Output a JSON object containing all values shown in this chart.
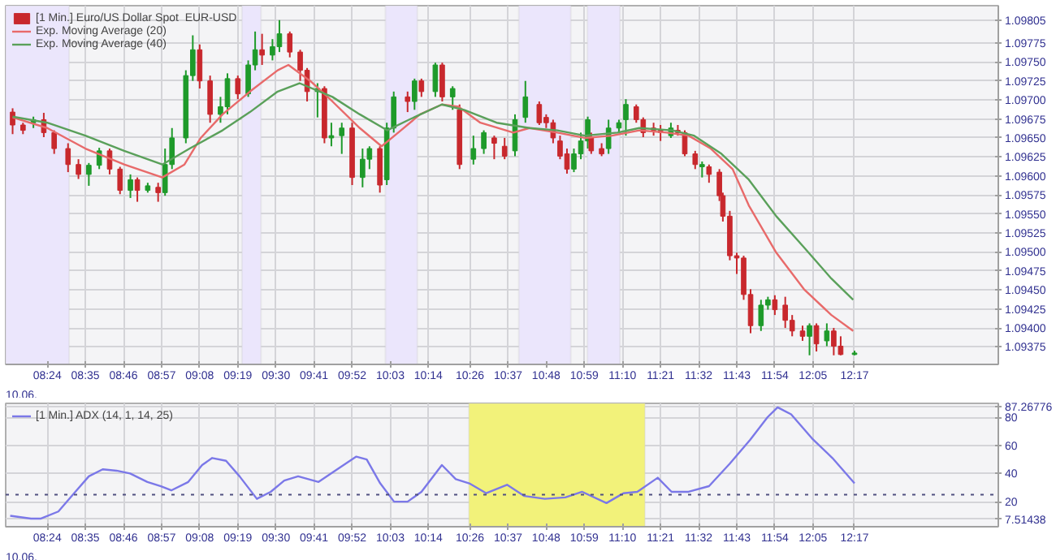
{
  "chart_data": [
    {
      "type": "candlestick",
      "xlim": [
        8.2,
        12.975
      ],
      "ylim": [
        1.09352,
        1.09824
      ],
      "annotations": [
        "10.06."
      ],
      "xticks": [
        {
          "value": 8.4,
          "label": "08:24"
        },
        {
          "value": 8.5833,
          "label": "08:35"
        },
        {
          "value": 8.7667,
          "label": "08:46"
        },
        {
          "value": 8.95,
          "label": "08:57"
        },
        {
          "value": 9.1333,
          "label": "09:08"
        },
        {
          "value": 9.3167,
          "label": "09:19"
        },
        {
          "value": 9.5,
          "label": "09:30"
        },
        {
          "value": 9.6833,
          "label": "09:41"
        },
        {
          "value": 9.8667,
          "label": "09:52"
        },
        {
          "value": 10.05,
          "label": "10:03"
        },
        {
          "value": 10.2333,
          "label": "10:14"
        },
        {
          "value": 10.4333,
          "label": "10:26"
        },
        {
          "value": 10.6167,
          "label": "10:37"
        },
        {
          "value": 10.8,
          "label": "10:48"
        },
        {
          "value": 10.9833,
          "label": "10:59"
        },
        {
          "value": 11.1667,
          "label": "11:10"
        },
        {
          "value": 11.35,
          "label": "11:21"
        },
        {
          "value": 11.5333,
          "label": "11:32"
        },
        {
          "value": 11.7167,
          "label": "11:43"
        },
        {
          "value": 11.9,
          "label": "11:54"
        },
        {
          "value": 12.0833,
          "label": "12:05"
        },
        {
          "value": 12.2833,
          "label": "12:17"
        }
      ],
      "yticks": [
        1.09375,
        {
          "value": 1.094,
          "label": "1.09400"
        },
        1.09425,
        {
          "value": 1.0945,
          "label": "1.09450"
        },
        1.09475,
        {
          "value": 1.095,
          "label": "1.09500"
        },
        1.09525,
        {
          "value": 1.0955,
          "label": "1.09550"
        },
        1.09575,
        {
          "value": 1.096,
          "label": "1.09600"
        },
        1.09625,
        {
          "value": 1.0965,
          "label": "1.09650"
        },
        1.09675,
        {
          "value": 1.097,
          "label": "1.09700"
        },
        1.09725,
        {
          "value": 1.0975,
          "label": "1.09750"
        },
        1.09775,
        1.09805
      ],
      "grid": true,
      "legend": "top left",
      "bands": [
        {
          "axis": "x",
          "from": 8.2,
          "to": 8.505,
          "color": "#ebe6fc"
        },
        {
          "axis": "x",
          "from": 9.3367,
          "to": 9.4283,
          "color": "#ebe6fc"
        },
        {
          "axis": "x",
          "from": 10.0267,
          "to": 10.18,
          "color": "#ebe6fc"
        },
        {
          "axis": "x",
          "from": 10.6683,
          "to": 10.9183,
          "color": "#ebe6fc"
        },
        {
          "axis": "x",
          "from": 10.9983,
          "to": 11.155,
          "color": "#ebe6fc"
        }
      ],
      "series": [
        {
          "type": "candlestick",
          "name": "[1 Min.] Euro/US Dollar Spot  EUR-USD",
          "x": [
            8.2333,
            8.2833,
            8.3333,
            8.3833,
            8.4333,
            8.5,
            8.55,
            8.6,
            8.65,
            8.7,
            8.75,
            8.8,
            8.8333,
            8.8833,
            8.9333,
            8.9667,
            9.0,
            9.0667,
            9.1,
            9.1333,
            9.1833,
            9.2333,
            9.2667,
            9.3167,
            9.3667,
            9.4,
            9.4333,
            9.4833,
            9.5167,
            9.5667,
            9.6167,
            9.65,
            9.7,
            9.7333,
            9.7667,
            9.8167,
            9.8667,
            9.9167,
            9.95,
            10.0,
            10.0333,
            10.0667,
            10.1333,
            10.1667,
            10.2,
            10.2667,
            10.3,
            10.35,
            10.3833,
            10.45,
            10.5,
            10.55,
            10.6,
            10.65,
            10.7,
            10.7667,
            10.8,
            10.8333,
            10.8667,
            10.9,
            10.9333,
            10.9667,
            11.0,
            11.0167,
            11.0667,
            11.1,
            11.15,
            11.1833,
            11.2333,
            11.2667,
            11.3167,
            11.35,
            11.4,
            11.4333,
            11.4667,
            11.5167,
            11.55,
            11.5833,
            11.6333,
            11.65,
            11.6833,
            11.7167,
            11.75,
            11.7833,
            11.8333,
            11.8667,
            11.9,
            11.95,
            11.9833,
            12.0333,
            12.0667,
            12.1,
            12.15,
            12.1833,
            12.2167,
            12.2833
          ],
          "ohlc": [
            [
              1.09684,
              1.09689,
              1.09655,
              1.09667
            ],
            [
              1.09667,
              1.0967,
              1.09655,
              1.0966
            ],
            [
              1.0967,
              1.09678,
              1.09663,
              1.09674
            ],
            [
              1.09674,
              1.09683,
              1.09651,
              1.09657
            ],
            [
              1.09657,
              1.0966,
              1.09629,
              1.09636
            ],
            [
              1.09636,
              1.09643,
              1.09605,
              1.09615
            ],
            [
              1.09615,
              1.09622,
              1.09596,
              1.09602
            ],
            [
              1.09602,
              1.09617,
              1.09587,
              1.09614
            ],
            [
              1.09614,
              1.09637,
              1.09609,
              1.09633
            ],
            [
              1.09633,
              1.09636,
              1.09602,
              1.09609
            ],
            [
              1.09609,
              1.09612,
              1.09576,
              1.09581
            ],
            [
              1.09581,
              1.09602,
              1.09571,
              1.09595
            ],
            [
              1.09595,
              1.09598,
              1.09566,
              1.09581
            ],
            [
              1.09581,
              1.09591,
              1.09578,
              1.09587
            ],
            [
              1.09585,
              1.09591,
              1.09566,
              1.09578
            ],
            [
              1.09578,
              1.09636,
              1.09574,
              1.09615
            ],
            [
              1.09615,
              1.09663,
              1.09609,
              1.0965
            ],
            [
              1.0965,
              1.09739,
              1.09643,
              1.09732
            ],
            [
              1.09732,
              1.09785,
              1.09725,
              1.09766
            ],
            [
              1.09766,
              1.09773,
              1.09715,
              1.09725
            ],
            [
              1.09725,
              1.09732,
              1.0967,
              1.09681
            ],
            [
              1.09681,
              1.09704,
              1.0967,
              1.09691
            ],
            [
              1.09691,
              1.09735,
              1.09681,
              1.09728
            ],
            [
              1.09728,
              1.09732,
              1.09701,
              1.09708
            ],
            [
              1.09708,
              1.09752,
              1.09704,
              1.09746
            ],
            [
              1.09746,
              1.0979,
              1.09739,
              1.09766
            ],
            [
              1.09766,
              1.09787,
              1.09746,
              1.09759
            ],
            [
              1.09759,
              1.0978,
              1.09752,
              1.0977
            ],
            [
              1.0977,
              1.09805,
              1.09763,
              1.09787
            ],
            [
              1.09787,
              1.0979,
              1.09756,
              1.09763
            ],
            [
              1.09763,
              1.09766,
              1.09725,
              1.09739
            ],
            [
              1.09739,
              1.09742,
              1.09698,
              1.09711
            ],
            [
              1.09711,
              1.09722,
              1.09677,
              1.09715
            ],
            [
              1.09715,
              1.09718,
              1.09643,
              1.0965
            ],
            [
              1.0965,
              1.0967,
              1.09639,
              1.09653
            ],
            [
              1.09653,
              1.0967,
              1.09629,
              1.09663
            ],
            [
              1.09663,
              1.0967,
              1.09588,
              1.09598
            ],
            [
              1.09598,
              1.09636,
              1.09585,
              1.09622
            ],
            [
              1.09622,
              1.09639,
              1.09609,
              1.09636
            ],
            [
              1.09636,
              1.09639,
              1.09578,
              1.09588
            ],
            [
              1.09595,
              1.0967,
              1.09588,
              1.09663
            ],
            [
              1.09663,
              1.09711,
              1.09657,
              1.09704
            ],
            [
              1.09704,
              1.09711,
              1.09684,
              1.09698
            ],
            [
              1.09698,
              1.09728,
              1.09687,
              1.09725
            ],
            [
              1.09725,
              1.09728,
              1.09704,
              1.09711
            ],
            [
              1.09711,
              1.09749,
              1.09704,
              1.09746
            ],
            [
              1.09746,
              1.09749,
              1.09698,
              1.09704
            ],
            [
              1.09704,
              1.09718,
              1.09687,
              1.09715
            ],
            [
              1.09687,
              1.09694,
              1.09609,
              1.09615
            ],
            [
              1.09622,
              1.09653,
              1.09615,
              1.09636
            ],
            [
              1.09636,
              1.0966,
              1.09629,
              1.09657
            ],
            [
              1.0965,
              1.09653,
              1.09622,
              1.09643
            ],
            [
              1.09639,
              1.0965,
              1.09622,
              1.09626
            ],
            [
              1.09633,
              1.09681,
              1.09626,
              1.09674
            ],
            [
              1.09677,
              1.09725,
              1.0967,
              1.09704
            ],
            [
              1.09694,
              1.09698,
              1.09667,
              1.0967
            ],
            [
              1.09677,
              1.09681,
              1.09663,
              1.0967
            ],
            [
              1.0967,
              1.09674,
              1.09643,
              1.0965
            ],
            [
              1.09646,
              1.09653,
              1.09622,
              1.09626
            ],
            [
              1.09629,
              1.09636,
              1.09603,
              1.09609
            ],
            [
              1.09609,
              1.09636,
              1.09605,
              1.09629
            ],
            [
              1.09629,
              1.09657,
              1.09622,
              1.09646
            ],
            [
              1.09646,
              1.09678,
              1.09636,
              1.09674
            ],
            [
              1.0965,
              1.09657,
              1.09629,
              1.09633
            ],
            [
              1.09636,
              1.09643,
              1.09626,
              1.09629
            ],
            [
              1.09636,
              1.09674,
              1.09629,
              1.09663
            ],
            [
              1.09663,
              1.09674,
              1.09657,
              1.0967
            ],
            [
              1.09674,
              1.09701,
              1.09653,
              1.09694
            ],
            [
              1.09691,
              1.09694,
              1.0967,
              1.09674
            ],
            [
              1.09674,
              1.09677,
              1.09651,
              1.09657
            ],
            [
              1.09663,
              1.0967,
              1.09653,
              1.0966
            ],
            [
              1.0966,
              1.09667,
              1.09646,
              1.09657
            ],
            [
              1.09653,
              1.0967,
              1.0965,
              1.09663
            ],
            [
              1.0966,
              1.09667,
              1.09653,
              1.09657
            ],
            [
              1.09657,
              1.0966,
              1.09626,
              1.09629
            ],
            [
              1.09629,
              1.09633,
              1.09609,
              1.09615
            ],
            [
              1.09612,
              1.09619,
              1.09598,
              1.09615
            ],
            [
              1.09612,
              1.09615,
              1.09591,
              1.09602
            ],
            [
              1.09605,
              1.09609,
              1.09567,
              1.09574
            ],
            [
              1.09574,
              1.09578,
              1.0954,
              1.09547
            ],
            [
              1.09547,
              1.09554,
              1.09489,
              1.09495
            ],
            [
              1.09495,
              1.09499,
              1.09471,
              1.09492
            ],
            [
              1.09492,
              1.09495,
              1.09437,
              1.09444
            ],
            [
              1.09444,
              1.09451,
              1.09393,
              1.09403
            ],
            [
              1.09403,
              1.09437,
              1.09396,
              1.0943
            ],
            [
              1.0943,
              1.09441,
              1.09424,
              1.09437
            ],
            [
              1.09437,
              1.09443,
              1.09417,
              1.09424
            ],
            [
              1.0943,
              1.09441,
              1.094,
              1.0941
            ],
            [
              1.0941,
              1.09417,
              1.09389,
              1.09396
            ],
            [
              1.09396,
              1.09403,
              1.09383,
              1.09389
            ],
            [
              1.09389,
              1.09406,
              1.09364,
              1.09403
            ],
            [
              1.09403,
              1.09406,
              1.09369,
              1.09379
            ],
            [
              1.09383,
              1.09406,
              1.09376,
              1.09396
            ],
            [
              1.09396,
              1.094,
              1.09364,
              1.09376
            ],
            [
              1.09376,
              1.09389,
              1.09364,
              1.09365
            ],
            [
              1.09365,
              1.0937,
              1.09364,
              1.09367
            ]
          ],
          "colors": [
            "#c8282d",
            "#c8282d",
            "#1e9a2a",
            "#c8282d",
            "#c8282d",
            "#c8282d",
            "#c8282d",
            "#1e9a2a",
            "#1e9a2a",
            "#c8282d",
            "#c8282d",
            "#1e9a2a",
            "#c8282d",
            "#1e9a2a",
            "#c8282d",
            "#1e9a2a",
            "#1e9a2a",
            "#1e9a2a",
            "#1e9a2a",
            "#c8282d",
            "#c8282d",
            "#1e9a2a",
            "#1e9a2a",
            "#c8282d",
            "#1e9a2a",
            "#1e9a2a",
            "#c8282d",
            "#1e9a2a",
            "#1e9a2a",
            "#c8282d",
            "#c8282d",
            "#c8282d",
            "#1e9a2a",
            "#c8282d",
            "#1e9a2a",
            "#1e9a2a",
            "#c8282d",
            "#1e9a2a",
            "#1e9a2a",
            "#c8282d",
            "#1e9a2a",
            "#1e9a2a",
            "#c8282d",
            "#1e9a2a",
            "#c8282d",
            "#1e9a2a",
            "#c8282d",
            "#1e9a2a",
            "#c8282d",
            "#1e9a2a",
            "#1e9a2a",
            "#c8282d",
            "#c8282d",
            "#1e9a2a",
            "#1e9a2a",
            "#c8282d",
            "#c8282d",
            "#c8282d",
            "#c8282d",
            "#c8282d",
            "#1e9a2a",
            "#1e9a2a",
            "#1e9a2a",
            "#c8282d",
            "#c8282d",
            "#1e9a2a",
            "#1e9a2a",
            "#1e9a2a",
            "#c8282d",
            "#c8282d",
            "#c8282d",
            "#c8282d",
            "#1e9a2a",
            "#c8282d",
            "#c8282d",
            "#c8282d",
            "#1e9a2a",
            "#c8282d",
            "#c8282d",
            "#c8282d",
            "#c8282d",
            "#c8282d",
            "#c8282d",
            "#c8282d",
            "#1e9a2a",
            "#1e9a2a",
            "#c8282d",
            "#c8282d",
            "#c8282d",
            "#c8282d",
            "#1e9a2a",
            "#c8282d",
            "#1e9a2a",
            "#c8282d",
            "#c8282d",
            "#1e9a2a"
          ]
        },
        {
          "type": "line",
          "name": "Exp. Moving Average (20)",
          "color": "#e86a6a",
          "x": [
            8.2333,
            8.4,
            8.5833,
            8.77,
            8.9533,
            9.06,
            9.1383,
            9.2433,
            9.375,
            9.5083,
            9.56,
            9.665,
            9.7717,
            9.9033,
            10.0083,
            10.0883,
            10.1933,
            10.2983,
            10.3783,
            10.4833,
            10.6417,
            10.72,
            10.8533,
            10.985,
            11.1167,
            11.2483,
            11.38,
            11.485,
            11.5917,
            11.6967,
            11.775,
            11.9067,
            12.04,
            12.1717,
            12.2767
          ],
          "values": [
            1.09677,
            1.09663,
            1.09636,
            1.09615,
            1.09598,
            1.09615,
            1.0965,
            1.09681,
            1.09711,
            1.09739,
            1.09746,
            1.09725,
            1.09698,
            1.09663,
            1.09639,
            1.09657,
            1.09681,
            1.09694,
            1.09691,
            1.0967,
            1.09657,
            1.09663,
            1.09657,
            1.0965,
            1.09653,
            1.0966,
            1.09657,
            1.09653,
            1.09636,
            1.09609,
            1.09561,
            1.09499,
            1.09451,
            1.09417,
            1.09396
          ]
        },
        {
          "type": "line",
          "name": "Exp. Moving Average (40)",
          "color": "#5aa05a",
          "x": [
            8.2333,
            8.4,
            8.5833,
            8.77,
            8.9533,
            9.085,
            9.2433,
            9.375,
            9.5083,
            9.6133,
            9.7717,
            9.9033,
            10.035,
            10.14,
            10.2983,
            10.405,
            10.5617,
            10.72,
            10.8533,
            10.985,
            11.1433,
            11.2483,
            11.4067,
            11.5117,
            11.6433,
            11.775,
            11.9067,
            12.04,
            12.1717,
            12.2767
          ],
          "values": [
            1.09678,
            1.0967,
            1.09653,
            1.09633,
            1.09615,
            1.09636,
            1.0966,
            1.09684,
            1.09711,
            1.09722,
            1.09704,
            1.09681,
            1.0966,
            1.09674,
            1.09694,
            1.09687,
            1.0967,
            1.09663,
            1.0966,
            1.09653,
            1.09657,
            1.09663,
            1.0966,
            1.09653,
            1.09629,
            1.09595,
            1.09547,
            1.09506,
            1.09465,
            1.09437
          ]
        }
      ]
    },
    {
      "type": "line",
      "xlim": [
        8.2,
        12.975
      ],
      "ylim": [
        2.2,
        89.8
      ],
      "annotations": [
        "10.06."
      ],
      "xticks": [
        {
          "value": 8.4,
          "label": "08:24"
        },
        {
          "value": 8.5833,
          "label": "08:35"
        },
        {
          "value": 8.7667,
          "label": "08:46"
        },
        {
          "value": 8.95,
          "label": "08:57"
        },
        {
          "value": 9.1333,
          "label": "09:08"
        },
        {
          "value": 9.3167,
          "label": "09:19"
        },
        {
          "value": 9.5,
          "label": "09:30"
        },
        {
          "value": 9.6833,
          "label": "09:41"
        },
        {
          "value": 9.8667,
          "label": "09:52"
        },
        {
          "value": 10.05,
          "label": "10:03"
        },
        {
          "value": 10.2333,
          "label": "10:14"
        },
        {
          "value": 10.4333,
          "label": "10:26"
        },
        {
          "value": 10.6167,
          "label": "10:37"
        },
        {
          "value": 10.8,
          "label": "10:48"
        },
        {
          "value": 10.9833,
          "label": "10:59"
        },
        {
          "value": 11.1667,
          "label": "11:10"
        },
        {
          "value": 11.35,
          "label": "11:21"
        },
        {
          "value": 11.5333,
          "label": "11:32"
        },
        {
          "value": 11.7167,
          "label": "11:43"
        },
        {
          "value": 11.9,
          "label": "11:54"
        },
        {
          "value": 12.0833,
          "label": "12:05"
        },
        {
          "value": 12.2833,
          "label": "12:17"
        }
      ],
      "yticks": [
        7.51438,
        20,
        40,
        60,
        80,
        87.26776
      ],
      "grid": true,
      "legend": "top left",
      "bands": [
        {
          "axis": "x",
          "from": 10.4283,
          "to": 11.275,
          "color": "#f2f27a"
        }
      ],
      "ref_lines": [
        {
          "axis": "y",
          "value": 25,
          "color": "#505080",
          "line_style": "dotted"
        }
      ],
      "series": [
        {
          "name": "[1 Min.] ADX (14, 1, 14, 25)",
          "color": "#7b78e8",
          "x": [
            8.2217,
            8.3217,
            8.37,
            8.4533,
            8.535,
            8.6,
            8.6667,
            8.7333,
            8.7983,
            8.8817,
            8.9467,
            8.9967,
            9.0783,
            9.145,
            9.1933,
            9.26,
            9.325,
            9.4083,
            9.475,
            9.54,
            9.6067,
            9.705,
            9.805,
            9.8867,
            9.9367,
            10.0017,
            10.0683,
            10.1333,
            10.2,
            10.2983,
            10.365,
            10.43,
            10.5117,
            10.6117,
            10.695,
            10.7933,
            10.8917,
            10.9733,
            11.09,
            11.1717,
            11.2383,
            11.3367,
            11.4033,
            11.485,
            11.5833,
            11.6833,
            11.7817,
            11.865,
            11.9133,
            11.9783,
            12.0783,
            12.1767,
            12.2833
          ],
          "values": [
            10,
            8,
            8,
            13,
            27,
            38,
            43,
            42,
            40,
            34,
            31,
            28,
            34,
            46,
            51,
            49,
            38,
            22,
            27,
            35,
            38,
            34,
            44,
            52,
            50,
            33,
            20,
            20,
            27,
            46,
            36,
            33,
            26,
            32,
            24,
            22,
            23,
            27,
            19,
            26,
            27,
            37,
            27,
            27,
            31,
            47,
            64,
            80,
            87,
            82,
            65,
            51,
            33
          ]
        }
      ]
    }
  ]
}
